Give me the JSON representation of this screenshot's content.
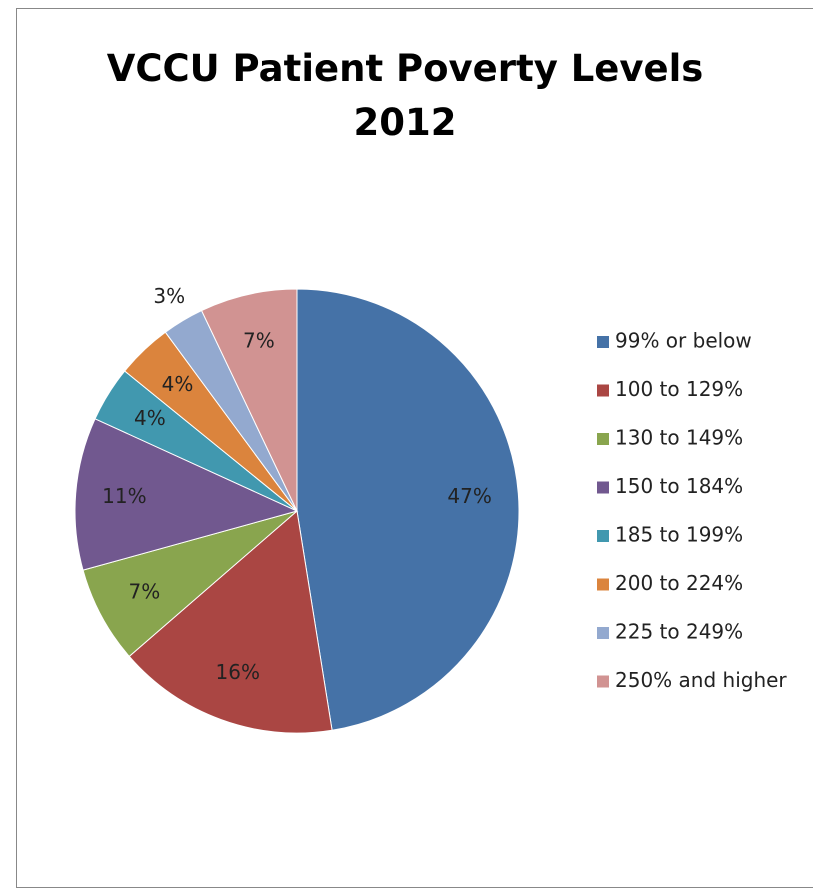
{
  "chart_data": {
    "type": "pie",
    "title": "VCCU Patient Poverty Levels 2012",
    "categories": [
      "99% or below",
      "100 to 129%",
      "130 to 149%",
      "150 to 184%",
      "185 to 199%",
      "200 to 224%",
      "225 to 249%",
      "250% and higher"
    ],
    "values": [
      47,
      16,
      7,
      11,
      4,
      4,
      3,
      7
    ],
    "value_labels": [
      "47%",
      "16%",
      "7%",
      "11%",
      "4%",
      "4%",
      "3%",
      "7%"
    ],
    "colors": [
      "#4572a7",
      "#aa4643",
      "#89a54e",
      "#71588f",
      "#4198af",
      "#db843d",
      "#93a9cf",
      "#d19392"
    ],
    "legend": "right"
  }
}
